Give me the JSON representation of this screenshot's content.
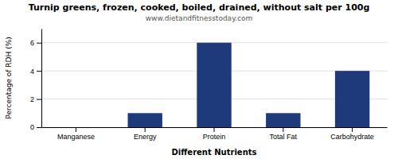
{
  "chart_data": {
    "type": "bar",
    "title": "Turnip greens, frozen, cooked, boiled, drained, without salt per 100g",
    "subtitle": "www.dietandfitnesstoday.com",
    "xlabel": "Different Nutrients",
    "ylabel": "Percentage of RDH (%)",
    "categories": [
      "Manganese",
      "Energy",
      "Protein",
      "Total Fat",
      "Carbohydrate"
    ],
    "values": [
      0.0,
      1.0,
      6.0,
      1.0,
      4.0
    ],
    "color": "#1f3a7a",
    "ylim": [
      0,
      7
    ],
    "yticks": [
      0,
      2,
      4,
      6
    ],
    "grid": true
  }
}
